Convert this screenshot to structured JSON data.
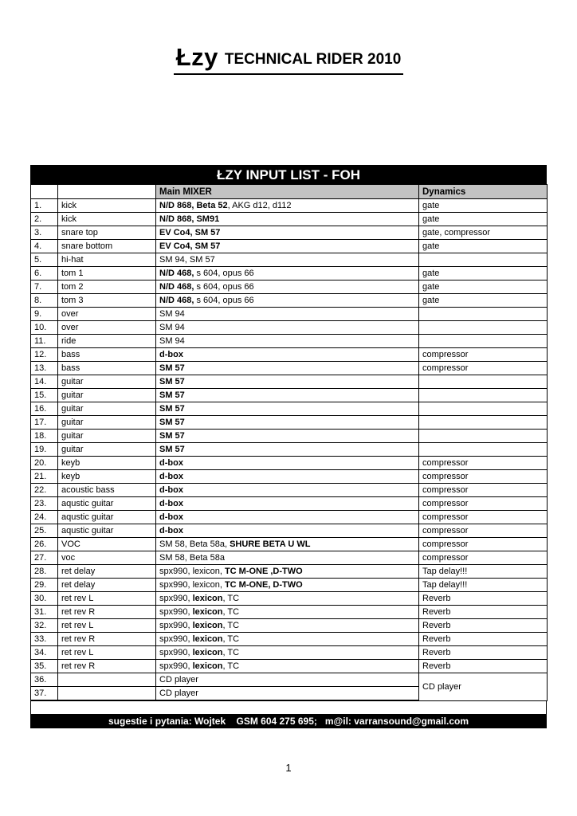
{
  "page": {
    "title_main": "Łzy",
    "title_rest": "TECHNICAL RIDER 2010",
    "page_number": "1"
  },
  "colors": {
    "banner_bg": "#000000",
    "banner_text": "#ffffff",
    "header_shading": "#c3c3c3",
    "border": "#000000"
  },
  "table": {
    "banner": "ŁZY INPUT LIST - FOH",
    "headers": [
      "",
      "",
      "Main MIXER",
      "Dynamics"
    ],
    "rows": [
      {
        "num": "1.",
        "inst": "kick",
        "mixer": [
          {
            "t": "N/D 868, Beta 52",
            "b": true
          },
          {
            "t": ", AKG d12, d112",
            "b": false
          }
        ],
        "dyn": "gate"
      },
      {
        "num": "2.",
        "inst": "kick",
        "mixer": [
          {
            "t": "N/D 868, SM91",
            "b": true
          }
        ],
        "dyn": "gate"
      },
      {
        "num": "3.",
        "inst": "snare top",
        "mixer": [
          {
            "t": "EV Co4, SM 57",
            "b": true
          }
        ],
        "dyn": "gate, compressor"
      },
      {
        "num": "4.",
        "inst": "snare bottom",
        "mixer": [
          {
            "t": "EV Co4, SM 57",
            "b": true
          }
        ],
        "dyn": "gate"
      },
      {
        "num": "5.",
        "inst": "hi-hat",
        "mixer": [
          {
            "t": "SM 94, SM 57",
            "b": false
          }
        ],
        "dyn": ""
      },
      {
        "num": "6.",
        "inst": "tom 1",
        "mixer": [
          {
            "t": "N/D 468,",
            "b": true
          },
          {
            "t": " s 604, opus 66",
            "b": false
          }
        ],
        "dyn": "gate"
      },
      {
        "num": "7.",
        "inst": "tom 2",
        "mixer": [
          {
            "t": "N/D 468,",
            "b": true
          },
          {
            "t": " s 604, opus 66",
            "b": false
          }
        ],
        "dyn": "gate"
      },
      {
        "num": "8.",
        "inst": "tom 3",
        "mixer": [
          {
            "t": "N/D 468,",
            "b": true
          },
          {
            "t": " s 604, opus 66",
            "b": false
          }
        ],
        "dyn": "gate"
      },
      {
        "num": "9.",
        "inst": "over",
        "mixer": [
          {
            "t": "SM 94",
            "b": false
          }
        ],
        "dyn": ""
      },
      {
        "num": "10.",
        "inst": "over",
        "mixer": [
          {
            "t": "SM 94",
            "b": false
          }
        ],
        "dyn": ""
      },
      {
        "num": "11.",
        "inst": "ride",
        "mixer": [
          {
            "t": "SM 94",
            "b": false
          }
        ],
        "dyn": ""
      },
      {
        "num": "12.",
        "inst": "bass",
        "mixer": [
          {
            "t": "d-box",
            "b": true
          }
        ],
        "dyn": "compressor"
      },
      {
        "num": "13.",
        "inst": "bass",
        "mixer": [
          {
            "t": "SM 57",
            "b": true
          }
        ],
        "dyn": "compressor"
      },
      {
        "num": "14.",
        "inst": "guitar",
        "mixer": [
          {
            "t": "SM 57",
            "b": true
          }
        ],
        "dyn": ""
      },
      {
        "num": "15.",
        "inst": "guitar",
        "mixer": [
          {
            "t": "SM 57",
            "b": true
          }
        ],
        "dyn": ""
      },
      {
        "num": "16.",
        "inst": "guitar",
        "mixer": [
          {
            "t": "SM 57",
            "b": true
          }
        ],
        "dyn": ""
      },
      {
        "num": "17.",
        "inst": "guitar",
        "mixer": [
          {
            "t": "SM 57",
            "b": true
          }
        ],
        "dyn": ""
      },
      {
        "num": "18.",
        "inst": "guitar",
        "mixer": [
          {
            "t": "SM 57",
            "b": true
          }
        ],
        "dyn": ""
      },
      {
        "num": "19.",
        "inst": "guitar",
        "mixer": [
          {
            "t": "SM 57",
            "b": true
          }
        ],
        "dyn": ""
      },
      {
        "num": "20.",
        "inst": "keyb",
        "mixer": [
          {
            "t": "d-box",
            "b": true
          }
        ],
        "dyn": "compressor"
      },
      {
        "num": "21.",
        "inst": "keyb",
        "mixer": [
          {
            "t": "d-box",
            "b": true
          }
        ],
        "dyn": "compressor"
      },
      {
        "num": "22.",
        "inst": "acoustic bass",
        "mixer": [
          {
            "t": "d-box",
            "b": true
          }
        ],
        "dyn": "compressor"
      },
      {
        "num": "23.",
        "inst": "aqustic guitar",
        "mixer": [
          {
            "t": "d-box",
            "b": true
          }
        ],
        "dyn": "compressor"
      },
      {
        "num": "24.",
        "inst": "aqustic guitar",
        "mixer": [
          {
            "t": "d-box",
            "b": true
          }
        ],
        "dyn": "compressor"
      },
      {
        "num": "25.",
        "inst": "aqustic guitar",
        "mixer": [
          {
            "t": "d-box",
            "b": true
          }
        ],
        "dyn": "compressor"
      },
      {
        "num": "26.",
        "inst": "VOC",
        "inst_b": true,
        "mixer": [
          {
            "t": "SM 58, Beta 58a, ",
            "b": false
          },
          {
            "t": "SHURE BETA U WL",
            "b": true
          }
        ],
        "dyn": "compressor"
      },
      {
        "num": "27.",
        "inst": "voc",
        "mixer": [
          {
            "t": "SM 58, Beta 58a",
            "b": false
          }
        ],
        "dyn": "compressor"
      },
      {
        "num": "28.",
        "inst": "ret delay",
        "mixer": [
          {
            "t": "spx990, lexicon, ",
            "b": false
          },
          {
            "t": "TC M-ONE ,D-TWO",
            "b": true
          }
        ],
        "dyn": "Tap delay!!!",
        "dyn_b": true
      },
      {
        "num": "29.",
        "inst": "ret delay",
        "mixer": [
          {
            "t": "spx990, lexicon, ",
            "b": false
          },
          {
            "t": "TC M-ONE, D-TWO",
            "b": true
          }
        ],
        "dyn": "Tap delay!!!",
        "dyn_b": true
      },
      {
        "num": "30.",
        "inst": "ret rev L",
        "mixer": [
          {
            "t": "spx990, ",
            "b": false
          },
          {
            "t": "lexicon",
            "b": true
          },
          {
            "t": ", TC",
            "b": false
          }
        ],
        "dyn": "Reverb"
      },
      {
        "num": "31.",
        "inst": "ret rev R",
        "mixer": [
          {
            "t": "spx990, ",
            "b": false
          },
          {
            "t": "lexicon",
            "b": true
          },
          {
            "t": ", TC",
            "b": false
          }
        ],
        "dyn": "Reverb"
      },
      {
        "num": "32.",
        "inst": "ret rev L",
        "mixer": [
          {
            "t": "spx990, ",
            "b": false
          },
          {
            "t": "lexicon",
            "b": true
          },
          {
            "t": ", TC",
            "b": false
          }
        ],
        "dyn": "Reverb"
      },
      {
        "num": "33.",
        "inst": "ret rev R",
        "mixer": [
          {
            "t": "spx990, ",
            "b": false
          },
          {
            "t": "lexicon",
            "b": true
          },
          {
            "t": ", TC",
            "b": false
          }
        ],
        "dyn": "Reverb"
      },
      {
        "num": "34.",
        "inst": "ret rev L",
        "mixer": [
          {
            "t": "spx990, ",
            "b": false
          },
          {
            "t": "lexicon",
            "b": true
          },
          {
            "t": ", TC",
            "b": false
          }
        ],
        "dyn": "Reverb"
      },
      {
        "num": "35.",
        "inst": "ret rev R",
        "mixer": [
          {
            "t": "spx990, ",
            "b": false
          },
          {
            "t": "lexicon",
            "b": true
          },
          {
            "t": ", TC",
            "b": false
          }
        ],
        "dyn": "Reverb"
      },
      {
        "num": "36.",
        "inst": "",
        "mixer": [
          {
            "t": "CD player",
            "b": false
          }
        ],
        "dyn": "CD player",
        "dyn_b": true,
        "dyn_span": 2
      },
      {
        "num": "37.",
        "inst": "",
        "mixer": [
          {
            "t": "CD player",
            "b": false
          }
        ],
        "dyn_skip": true
      }
    ],
    "footer_note": "sugestie i pytania: Wojtek    GSM 604 275 695;   m@il: varransound@gmail.com"
  }
}
